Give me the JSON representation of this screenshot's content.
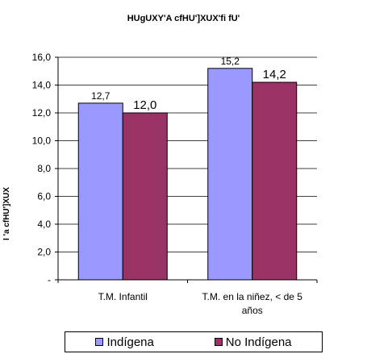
{
  "chart_data": {
    "type": "bar",
    "title": "HUgUXY'A cfHU']XUX'fi fU'",
    "ylabel": "I 'a cfHU']XUX",
    "categories": [
      "T.M. Infantil",
      "T.M. en la niñez, < de 5 años"
    ],
    "series": [
      {
        "name": "Indígena",
        "values": [
          12.7,
          15.2
        ],
        "labels": [
          "12,7",
          "15,2"
        ],
        "color": "#9999ff"
      },
      {
        "name": "No Indígena",
        "values": [
          12.0,
          14.2
        ],
        "labels": [
          "12,0",
          "14,2"
        ],
        "color": "#993366"
      }
    ],
    "yticks": [
      "-",
      "2,0",
      "4,0",
      "6,0",
      "8,0",
      "10,0",
      "12,0",
      "14,0",
      "16,0"
    ],
    "ylim": [
      0,
      16
    ],
    "grid": true,
    "legend_position": "bottom"
  }
}
